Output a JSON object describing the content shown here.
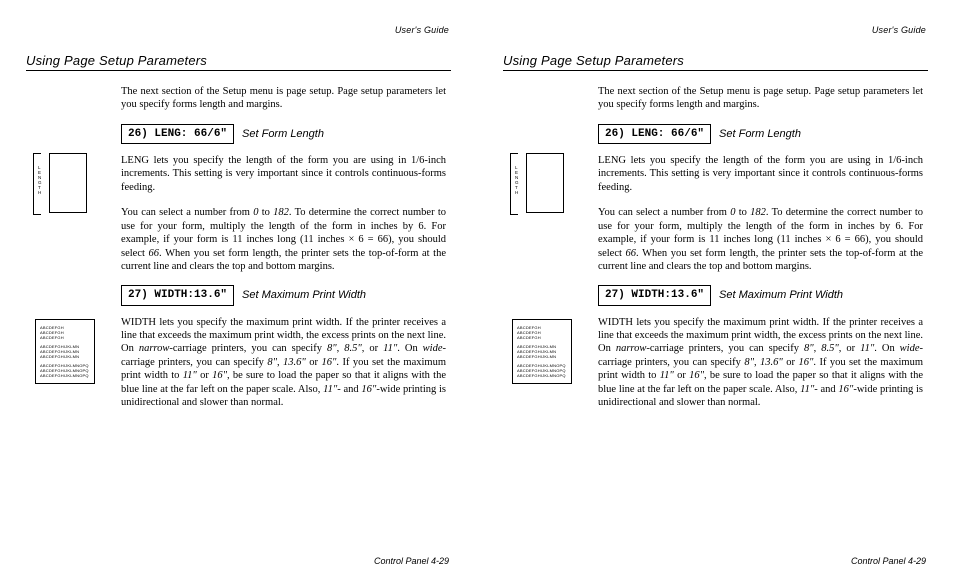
{
  "header": "User's Guide",
  "section_title": "Using Page Setup Parameters",
  "intro": "The next section of the Setup menu is page setup.  Page setup parameters let you specify forms length and margins.",
  "param26": {
    "box": "26) LENG: 66/6\"",
    "title": "Set Form Length",
    "p1": "LENG lets you specify the length of the form you are using in 1/6-inch increments.  This setting is very important since it controls continuous-forms feeding.",
    "p2_a": "You can select a number from ",
    "p2_b": " to ",
    "p2_c": ".  To determine the correct number to use for your form, multiply the length of the form in inches by 6.  For example, if your form is 11 inches long (11 inches × 6 = 66), you should select ",
    "p2_d": ".  When you set form length, the printer sets the top-of-form at the current line and clears the top and bottom margins.",
    "v0": "0",
    "v182": "182",
    "v66": "66"
  },
  "param27": {
    "box": "27) WIDTH:13.6\"",
    "title": "Set Maximum Print Width",
    "p_a": "WIDTH lets you specify the maximum print width.  If the printer receives a line that exceeds the maximum print width, the excess prints on the next line.  On ",
    "p_b": "-carriage printers, you can specify ",
    "p_c": ", ",
    "p_d": ", or ",
    "p_e": ".   On ",
    "p_f": "-carriage printers, you can specify ",
    "p_g": ", ",
    "p_h": " or ",
    "p_i": ".  If you set the maximum print width to ",
    "p_j": " or ",
    "p_k": ", be sure to load the paper so that it aligns with the blue line at the far left on the paper scale.  Also, ",
    "p_l": "- and ",
    "p_m": "-wide printing is unidirectional and slower than normal.",
    "narrow": "narrow",
    "wide": "wide",
    "w8": "8\"",
    "w85": "8.5\"",
    "w11": "11\"",
    "w136": "13.6\"",
    "w16": "16\""
  },
  "footer": "Control Panel  4-29",
  "fig1": {
    "label_chars": [
      "L",
      "E",
      "N",
      "G",
      "T",
      "H"
    ]
  },
  "fig2": {
    "short": "ABCDEFGH",
    "med": "ABCDEFGHIJKLMN",
    "long": "ABCDEFGHIJKLMNOPQ"
  },
  "colors": {
    "text": "#000000",
    "background": "#ffffff",
    "rule": "#000000"
  },
  "fonts": {
    "serif": "Times New Roman",
    "sans": "Arial",
    "mono": "Courier New"
  }
}
